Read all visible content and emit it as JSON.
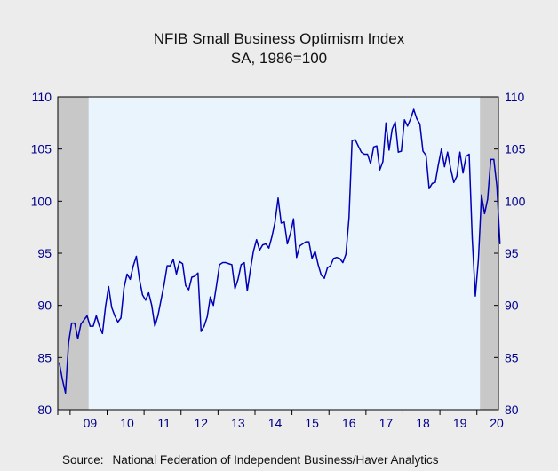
{
  "title": "NFIB Small Business Optimism Index",
  "subtitle": "SA, 1986=100",
  "source_label": "Source:",
  "source_text": "National Federation of Independent Business/Haver Analytics",
  "colors": {
    "line": "#0000b4",
    "axis_text": "#00008b",
    "plot_bg": "#eaf4fc",
    "recession": "#c8c8c8",
    "page_bg": "#ececec"
  },
  "chart_data": {
    "type": "line",
    "title": "NFIB Small Business Optimism Index",
    "subtitle": "SA, 1986=100",
    "xlabel": "",
    "ylabel": "",
    "x_tick_labels": [
      "09",
      "10",
      "11",
      "12",
      "13",
      "14",
      "15",
      "16",
      "17",
      "18",
      "19",
      "20"
    ],
    "x_start": "2008-09",
    "x_end": "2020-07",
    "frequency": "monthly",
    "ylim": [
      80,
      110
    ],
    "y_ticks": [
      80,
      85,
      90,
      95,
      100,
      105,
      110
    ],
    "y_axes": [
      "left",
      "right"
    ],
    "grid": false,
    "legend": "none",
    "recession_shading": [
      {
        "start": "2008-09",
        "end": "2009-06"
      },
      {
        "start": "2020-02",
        "end": "2020-07"
      }
    ],
    "series": [
      {
        "values": [
          84.5,
          82.9,
          81.6,
          86.4,
          88.3,
          88.3,
          86.8,
          88.2,
          88.6,
          89.0,
          88.0,
          88.0,
          89.0,
          88.0,
          87.3,
          89.9,
          91.8,
          89.8,
          89.0,
          88.4,
          88.8,
          91.7,
          93.0,
          92.5,
          93.8,
          94.7,
          92.5,
          91.0,
          90.5,
          91.2,
          90.0,
          88.0,
          89.0,
          90.5,
          92.0,
          93.8,
          93.8,
          94.4,
          93.0,
          94.2,
          94.0,
          91.9,
          91.5,
          92.7,
          92.8,
          93.1,
          87.5,
          88.0,
          88.9,
          90.8,
          90.0,
          91.9,
          93.9,
          94.1,
          94.1,
          94.0,
          93.9,
          91.6,
          92.5,
          93.9,
          94.1,
          91.4,
          93.4,
          95.2,
          96.3,
          95.3,
          95.8,
          95.9,
          95.5,
          96.6,
          98.0,
          100.3,
          97.9,
          98.0,
          95.9,
          96.9,
          98.3,
          94.6,
          95.7,
          95.9,
          96.1,
          96.1,
          94.5,
          95.2,
          93.9,
          92.9,
          92.6,
          93.6,
          93.8,
          94.5,
          94.6,
          94.5,
          94.1,
          94.9,
          98.4,
          105.8,
          105.9,
          105.3,
          104.7,
          104.5,
          104.5,
          103.6,
          105.2,
          105.3,
          103.0,
          103.8,
          107.5,
          104.9,
          106.9,
          107.6,
          104.7,
          104.8,
          107.8,
          107.2,
          107.9,
          108.8,
          107.9,
          107.4,
          104.8,
          104.4,
          101.2,
          101.7,
          101.8,
          103.5,
          105.0,
          103.3,
          104.7,
          103.1,
          101.8,
          102.4,
          104.7,
          102.7,
          104.3,
          104.5,
          96.4,
          90.9,
          94.4,
          100.6,
          98.8,
          100.2,
          104.0,
          104.0,
          101.4,
          95.9
        ]
      }
    ]
  }
}
